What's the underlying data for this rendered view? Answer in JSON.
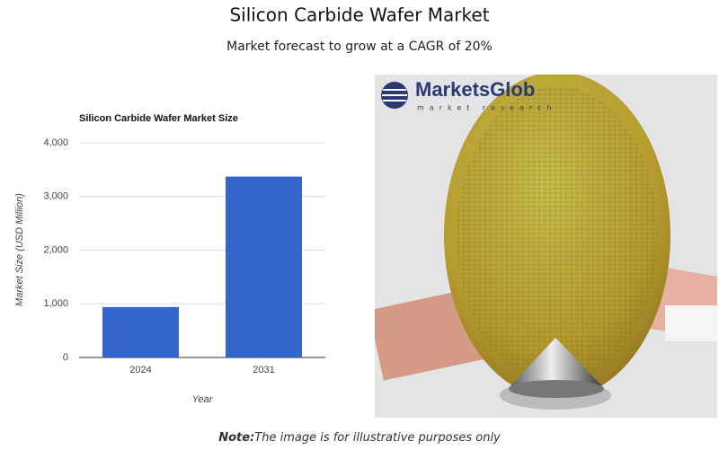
{
  "title": "Silicon Carbide Wafer Market",
  "subtitle": "Market forecast to grow at a CAGR of 20%",
  "chart_data": {
    "type": "bar",
    "title": "Silicon Carbide Wafer Market Size",
    "x_label": "Year",
    "y_label": "Market Size (USD Million)",
    "categories": [
      "2024",
      "2031"
    ],
    "values": [
      940,
      3370
    ],
    "color": "#3366cc",
    "ylim": [
      0,
      4000
    ],
    "yticks": [
      0,
      {
        "value": 1000,
        "label": "1,000"
      },
      {
        "value": 2000,
        "label": "2,000"
      },
      {
        "value": 3000,
        "label": "3,000"
      },
      {
        "value": 4000,
        "label": "4,000"
      }
    ],
    "grid": true
  },
  "image": {
    "logo": "MarketsGlob",
    "tagline": "market research"
  },
  "note": {
    "label": "Note:",
    "text": "The image is for illustrative purposes only"
  }
}
